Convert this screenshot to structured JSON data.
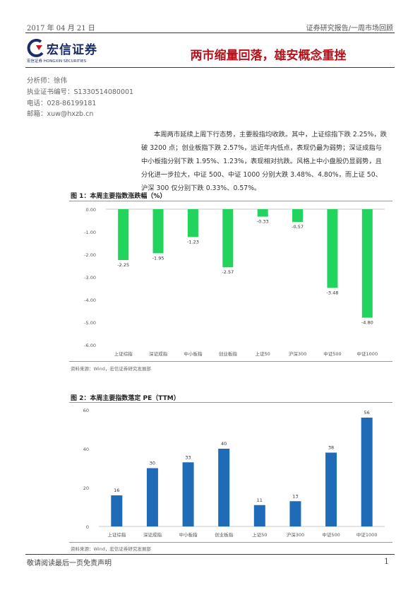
{
  "header": {
    "date": "2017 年 04 月 21 日",
    "category": "证券研究报告/一周市场回顾"
  },
  "logo": {
    "name_cn": "宏信证券",
    "name_en": "宏信证券 HONGXIN SECURITIES"
  },
  "title": "两市缩量回落，雄安概念重挫",
  "analyst": {
    "name": "分析师：徐伟",
    "cert": "执业证书编号：S1330514080001",
    "phone": "电话：028-86199181",
    "email": "邮箱：xuw@hxzb.cn"
  },
  "summary": "本周两市延续上周下行态势，主要股指均收跌。其中，上证综指下跌 2.25%，跌破 3200 点；创业板指下跌 2.57%，远近年内低点，表现仍最为弱势；深证成指与中小板指分别下跌 1.95%、1.23%，表现相对抗跌。风格上中小盘股仍显弱势，且分化进一步拉大，中证 500、中证 1000 分别大跌 3.48%、4.80%，而上证 50、沪深 300 仅分别下跌 0.33%、0.57%。",
  "colors": {
    "bar_green": "#22d45e",
    "bar_blue": "#1f6bb8",
    "title_red": "#b5121b"
  },
  "chart_data": [
    {
      "type": "bar",
      "title": "图 1：本周主要指数涨跌幅（%）",
      "categories": [
        "上证综指",
        "深证成指",
        "中小板指",
        "创业板指",
        "上证50",
        "沪深300",
        "中证500",
        "中证1000"
      ],
      "values": [
        -2.25,
        -1.95,
        -1.23,
        -2.57,
        -0.33,
        -0.57,
        -3.48,
        -4.8
      ],
      "data_labels": [
        "-2.25",
        "-1.95",
        "-1.23",
        "-2.57",
        "-0.33",
        "-0.57",
        "-3.48",
        "-4.80"
      ],
      "ylim": [
        -6,
        0
      ],
      "yticks": [
        "0.00",
        "-1.00",
        "-2.00",
        "-3.00",
        "-4.00",
        "-5.00",
        "-6.00"
      ],
      "grid": false,
      "source": "资料来源：Wind，宏信证券研究发展部"
    },
    {
      "type": "bar",
      "title": "图 2：本周主要指数落定 PE（TTM）",
      "categories": [
        "上证综指",
        "深证成指",
        "中小板指",
        "创业板指",
        "上证50",
        "沪深300",
        "中证500",
        "中证1000"
      ],
      "values": [
        16,
        30,
        33,
        40,
        11,
        13,
        38,
        56
      ],
      "data_labels": [
        "16",
        "30",
        "33",
        "40",
        "11",
        "13",
        "38",
        "56"
      ],
      "ylim": [
        0,
        60
      ],
      "yticks": [
        "60",
        "40",
        "20",
        "0"
      ],
      "grid": false,
      "source": "资料来源：Wind，宏信证券研究发展部"
    }
  ],
  "footer": {
    "disclaimer": "敬请阅读最后一页免责声明",
    "page": "1"
  }
}
